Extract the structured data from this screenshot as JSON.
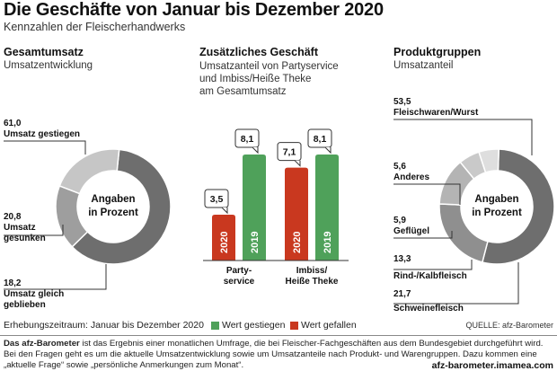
{
  "title": "Die Geschäfte von Januar bis Dezember 2020",
  "subtitle": "Kennzahlen der Fleischerhandwerks",
  "colors": {
    "green": "#4fa15a",
    "red": "#c9381f",
    "dark_gray": "#6e6e6e",
    "mid_gray": "#9e9e9e",
    "light_gray": "#c6c6c6",
    "lighter_gray": "#dedede"
  },
  "sections": {
    "left": {
      "heading": "Gesamtumsatz",
      "sub": "Umsatzentwicklung"
    },
    "middle": {
      "heading": "Zusätzliches Geschäft",
      "sub1": "Umsatzanteil von Partyservice",
      "sub2": "und Imbiss/Heiße Theke",
      "sub3": "am Gesamtumsatz"
    },
    "right": {
      "heading": "Produktgruppen",
      "sub": "Umsatzanteil"
    }
  },
  "donut_center": {
    "line1": "Angaben",
    "line2": "in Prozent"
  },
  "chart_data": [
    {
      "type": "pie",
      "title": "Gesamtumsatz",
      "subtitle": "Umsatzentwicklung",
      "slices": [
        {
          "label": "Umsatz gestiegen",
          "value": 61.0,
          "display": "61,0",
          "color": "#6e6e6e"
        },
        {
          "label": "Umsatz gleich geblieben",
          "value": 18.2,
          "display": "18,2",
          "color": "#9e9e9e"
        },
        {
          "label": "Umsatz gesunken",
          "value": 20.8,
          "display": "20,8",
          "color": "#c6c6c6"
        }
      ]
    },
    {
      "type": "bar",
      "title": "Zusätzliches Geschäft",
      "categories": [
        "Party-service",
        "Imbiss/ Heiße Theke"
      ],
      "category_lines": [
        [
          "Party-",
          "service"
        ],
        [
          "Imbiss/",
          "Heiße Theke"
        ]
      ],
      "series": [
        {
          "name": "2020",
          "values": [
            3.5,
            7.1
          ],
          "display": [
            "3,5",
            "7,1"
          ],
          "color": "#c9381f"
        },
        {
          "name": "2019",
          "values": [
            8.1,
            8.1
          ],
          "display": [
            "8,1",
            "8,1"
          ],
          "color": "#4fa15a"
        }
      ],
      "ylim": [
        0,
        8.1
      ]
    },
    {
      "type": "pie",
      "title": "Produktgruppen",
      "subtitle": "Umsatzanteil",
      "slices": [
        {
          "label": "Fleischwaren/Wurst",
          "value": 53.5,
          "display": "53,5",
          "color": "#6e6e6e"
        },
        {
          "label": "Schweinefleisch",
          "value": 21.7,
          "display": "21,7",
          "color": "#8f8f8f"
        },
        {
          "label": "Rind-/Kalbfleisch",
          "value": 13.3,
          "display": "13,3",
          "color": "#b4b4b4"
        },
        {
          "label": "Geflügel",
          "value": 5.9,
          "display": "5,9",
          "color": "#c9c9c9"
        },
        {
          "label": "Anderes",
          "value": 5.6,
          "display": "5,6",
          "color": "#dedede"
        }
      ]
    }
  ],
  "footer": {
    "period": "Erhebungszeitraum: Januar bis Dezember 2020",
    "legend_up": "Wert gestiegen",
    "legend_down": "Wert gefallen",
    "source": "QUELLE: afz-Barometer",
    "desc_bold": "Das afz-Barometer",
    "desc_rest": " ist das Ergebnis einer monatlichen Umfrage, die bei Fleischer-Fachgeschäften aus dem Bundesgebiet durchgeführt wird. Bei den Fragen geht es um die aktuelle Umsatzentwicklung sowie um Umsatzanteile nach Produkt- und Warengruppen. Dazu kommen eine „aktuelle Frage“ sowie „persönliche Anmerkungen zum Monat“.",
    "site": "afz-barometer.imamea.com"
  }
}
